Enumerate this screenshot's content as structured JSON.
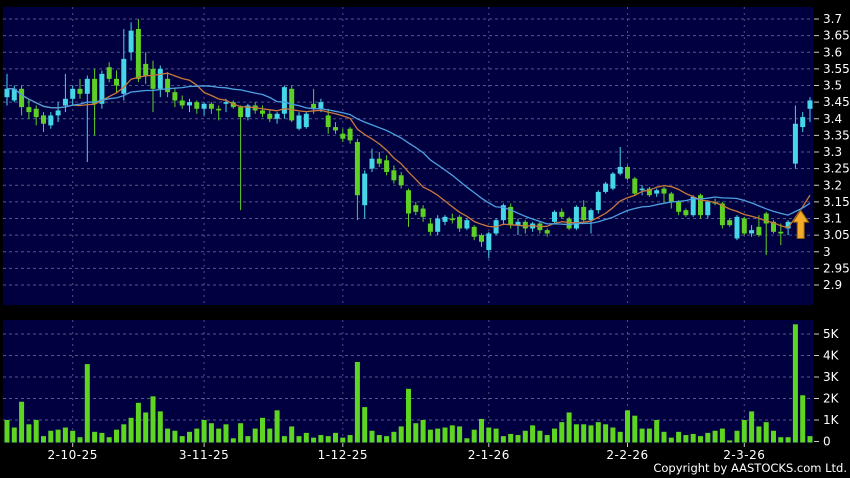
{
  "chart_data": {
    "type": "candlestick+volume",
    "title": "",
    "copyright": "Copyright by AASTOCKS.com Ltd.",
    "price_axis": {
      "max": 3.7,
      "min": 2.9,
      "tick_step": 0.05,
      "side": "right",
      "tick_labels": [
        "3.7",
        "3.65",
        "3.6",
        "3.55",
        "3.5",
        "3.45",
        "3.4",
        "3.35",
        "3.3",
        "3.25",
        "3.2",
        "3.15",
        "3.1",
        "3.05",
        "3",
        "2.95",
        "2.9"
      ]
    },
    "volume_axis": {
      "max_k": 5.65,
      "tick_step_k": 1,
      "side": "right",
      "tick_labels": [
        "5K",
        "4K",
        "3K",
        "2K",
        "1K",
        "0"
      ]
    },
    "month_marks": [
      {
        "index": 9,
        "label": "2-10-25"
      },
      {
        "index": 27,
        "label": "3-11-25"
      },
      {
        "index": 46,
        "label": "1-12-25"
      },
      {
        "index": 66,
        "label": "2-1-26"
      },
      {
        "index": 85,
        "label": "2-2-26"
      },
      {
        "index": 101,
        "label": "2-3-26"
      }
    ],
    "ma_lines": [
      {
        "name": "ma-fast",
        "period": 10,
        "color": "#c9793a"
      },
      {
        "name": "ma-slow",
        "period": 20,
        "color": "#4da0e0"
      }
    ],
    "signal_arrow": {
      "candle_index": 109,
      "direction": "up",
      "price_base": 3.04,
      "price_tip": 3.125,
      "color": "#f2aa28"
    },
    "colors": {
      "background": "#000000",
      "pane": "#000040",
      "up": "#45d6e8",
      "down": "#5ecf25",
      "volume_bar": "#5ed521",
      "grid": "#9aa0b8",
      "axis_text": "#ffffff",
      "tick": "#cccccc"
    },
    "candles_format": [
      "open",
      "high",
      "low",
      "close",
      "volume_k"
    ],
    "candles": [
      [
        3.465,
        3.535,
        3.44,
        3.49,
        1.0
      ],
      [
        3.455,
        3.5,
        3.45,
        3.49,
        0.65
      ],
      [
        3.49,
        3.5,
        3.41,
        3.435,
        1.85
      ],
      [
        3.435,
        3.46,
        3.4,
        3.42,
        0.8
      ],
      [
        3.43,
        3.44,
        3.38,
        3.405,
        1.0
      ],
      [
        3.41,
        3.42,
        3.36,
        3.385,
        0.25
      ],
      [
        3.38,
        3.42,
        3.37,
        3.41,
        0.5
      ],
      [
        3.41,
        3.45,
        3.39,
        3.425,
        0.55
      ],
      [
        3.44,
        3.535,
        3.42,
        3.46,
        0.65
      ],
      [
        3.46,
        3.5,
        3.44,
        3.49,
        0.5
      ],
      [
        3.49,
        3.52,
        3.46,
        3.475,
        0.2
      ],
      [
        3.475,
        3.53,
        3.27,
        3.52,
        3.6
      ],
      [
        3.52,
        3.55,
        3.35,
        3.445,
        0.45
      ],
      [
        3.445,
        3.545,
        3.43,
        3.535,
        0.4
      ],
      [
        3.555,
        3.57,
        3.51,
        3.52,
        0.2
      ],
      [
        3.52,
        3.545,
        3.48,
        3.5,
        0.55
      ],
      [
        3.475,
        3.67,
        3.455,
        3.58,
        0.8
      ],
      [
        3.6,
        3.69,
        3.575,
        3.665,
        1.1
      ],
      [
        3.67,
        3.7,
        3.51,
        3.52,
        1.8
      ],
      [
        3.565,
        3.6,
        3.505,
        3.53,
        1.35
      ],
      [
        3.55,
        3.575,
        3.42,
        3.49,
        2.1
      ],
      [
        3.49,
        3.56,
        3.465,
        3.55,
        1.4
      ],
      [
        3.52,
        3.54,
        3.465,
        3.48,
        0.6
      ],
      [
        3.48,
        3.49,
        3.435,
        3.455,
        0.5
      ],
      [
        3.455,
        3.47,
        3.43,
        3.44,
        0.25
      ],
      [
        3.44,
        3.46,
        3.42,
        3.45,
        0.45
      ],
      [
        3.45,
        3.455,
        3.415,
        3.43,
        0.6
      ],
      [
        3.43,
        3.45,
        3.41,
        3.445,
        1.0
      ],
      [
        3.445,
        3.45,
        3.415,
        3.43,
        0.85
      ],
      [
        3.43,
        3.44,
        3.395,
        3.425,
        0.6
      ],
      [
        3.445,
        3.46,
        3.42,
        3.45,
        0.8
      ],
      [
        3.45,
        3.455,
        3.43,
        3.435,
        0.15
      ],
      [
        3.435,
        3.44,
        3.125,
        3.405,
        0.85
      ],
      [
        3.405,
        3.445,
        3.395,
        3.44,
        0.25
      ],
      [
        3.44,
        3.45,
        3.415,
        3.425,
        0.6
      ],
      [
        3.425,
        3.44,
        3.405,
        3.415,
        1.1
      ],
      [
        3.415,
        3.425,
        3.39,
        3.4,
        0.6
      ],
      [
        3.4,
        3.42,
        3.385,
        3.415,
        1.45
      ],
      [
        3.415,
        3.5,
        3.4,
        3.495,
        0.25
      ],
      [
        3.49,
        3.5,
        3.39,
        3.395,
        0.7
      ],
      [
        3.37,
        3.42,
        3.365,
        3.41,
        0.25
      ],
      [
        3.375,
        3.42,
        3.37,
        3.415,
        0.4
      ],
      [
        3.445,
        3.49,
        3.415,
        3.43,
        0.18
      ],
      [
        3.43,
        3.46,
        3.42,
        3.45,
        0.3
      ],
      [
        3.41,
        3.43,
        3.355,
        3.375,
        0.25
      ],
      [
        3.375,
        3.39,
        3.355,
        3.365,
        0.4
      ],
      [
        3.355,
        3.37,
        3.33,
        3.34,
        0.18
      ],
      [
        3.37,
        3.375,
        3.325,
        3.335,
        0.3
      ],
      [
        3.33,
        3.34,
        3.095,
        3.17,
        3.7
      ],
      [
        3.14,
        3.245,
        3.1,
        3.235,
        1.6
      ],
      [
        3.25,
        3.31,
        3.24,
        3.28,
        0.5
      ],
      [
        3.28,
        3.3,
        3.255,
        3.265,
        0.3
      ],
      [
        3.275,
        3.29,
        3.23,
        3.24,
        0.25
      ],
      [
        3.245,
        3.26,
        3.205,
        3.215,
        0.45
      ],
      [
        3.23,
        3.24,
        3.19,
        3.2,
        0.7
      ],
      [
        3.185,
        3.19,
        3.075,
        3.115,
        2.45
      ],
      [
        3.14,
        3.15,
        3.11,
        3.12,
        0.85
      ],
      [
        3.13,
        3.14,
        3.09,
        3.105,
        1.0
      ],
      [
        3.085,
        3.1,
        3.05,
        3.06,
        0.55
      ],
      [
        3.06,
        3.11,
        3.05,
        3.1,
        0.6
      ],
      [
        3.09,
        3.11,
        3.08,
        3.105,
        0.65
      ],
      [
        3.1,
        3.115,
        3.085,
        3.095,
        0.75
      ],
      [
        3.105,
        3.11,
        3.06,
        3.07,
        0.7
      ],
      [
        3.07,
        3.1,
        3.065,
        3.095,
        0.15
      ],
      [
        3.075,
        3.08,
        3.035,
        3.045,
        0.55
      ],
      [
        3.05,
        3.055,
        3.015,
        3.03,
        1.05
      ],
      [
        3.005,
        3.06,
        2.98,
        3.055,
        0.65
      ],
      [
        3.055,
        3.1,
        3.05,
        3.095,
        0.6
      ],
      [
        3.095,
        3.145,
        3.08,
        3.14,
        0.25
      ],
      [
        3.135,
        3.145,
        3.07,
        3.08,
        0.35
      ],
      [
        3.08,
        3.1,
        3.05,
        3.09,
        0.3
      ],
      [
        3.09,
        3.095,
        3.055,
        3.07,
        0.5
      ],
      [
        3.07,
        3.09,
        3.06,
        3.085,
        0.75
      ],
      [
        3.085,
        3.09,
        3.055,
        3.065,
        0.5
      ],
      [
        3.065,
        3.07,
        3.045,
        3.055,
        0.3
      ],
      [
        3.09,
        3.125,
        3.085,
        3.12,
        0.6
      ],
      [
        3.12,
        3.13,
        3.1,
        3.105,
        0.9
      ],
      [
        3.1,
        3.105,
        3.065,
        3.07,
        1.35
      ],
      [
        3.07,
        3.14,
        3.065,
        3.135,
        0.8
      ],
      [
        3.135,
        3.155,
        3.09,
        3.095,
        0.8
      ],
      [
        3.095,
        3.13,
        3.055,
        3.125,
        0.75
      ],
      [
        3.125,
        3.185,
        3.115,
        3.18,
        0.9
      ],
      [
        3.18,
        3.21,
        3.175,
        3.205,
        0.8
      ],
      [
        3.19,
        3.24,
        3.185,
        3.235,
        0.65
      ],
      [
        3.235,
        3.315,
        3.23,
        3.255,
        0.45
      ],
      [
        3.255,
        3.26,
        3.215,
        3.22,
        1.45
      ],
      [
        3.22,
        3.225,
        3.17,
        3.175,
        1.2
      ],
      [
        3.185,
        3.2,
        3.17,
        3.19,
        0.6
      ],
      [
        3.19,
        3.195,
        3.165,
        3.17,
        0.6
      ],
      [
        3.175,
        3.19,
        3.165,
        3.185,
        1.0
      ],
      [
        3.19,
        3.195,
        3.15,
        3.175,
        0.45
      ],
      [
        3.175,
        3.18,
        3.13,
        3.15,
        0.18
      ],
      [
        3.15,
        3.155,
        3.11,
        3.12,
        0.45
      ],
      [
        3.125,
        3.13,
        3.105,
        3.11,
        0.3
      ],
      [
        3.11,
        3.17,
        3.105,
        3.165,
        0.35
      ],
      [
        3.17,
        3.175,
        3.1,
        3.11,
        0.25
      ],
      [
        3.11,
        3.155,
        3.1,
        3.15,
        0.4
      ],
      [
        3.15,
        3.16,
        3.14,
        3.145,
        0.5
      ],
      [
        3.145,
        3.15,
        3.07,
        3.08,
        0.6
      ],
      [
        3.095,
        3.1,
        3.075,
        3.08,
        0.05
      ],
      [
        3.04,
        3.11,
        3.035,
        3.105,
        0.5
      ],
      [
        3.1,
        3.105,
        3.05,
        3.055,
        1.0
      ],
      [
        3.055,
        3.08,
        3.045,
        3.065,
        1.4
      ],
      [
        3.075,
        3.11,
        3.045,
        3.05,
        0.7
      ],
      [
        3.115,
        3.12,
        2.99,
        3.085,
        0.9
      ],
      [
        3.09,
        3.095,
        3.055,
        3.06,
        0.5
      ],
      [
        3.06,
        3.085,
        3.02,
        3.055,
        0.2
      ],
      [
        3.07,
        3.095,
        3.05,
        3.09,
        0.2
      ],
      [
        3.265,
        3.44,
        3.25,
        3.385,
        5.45
      ],
      [
        3.375,
        3.42,
        3.36,
        3.405,
        2.15
      ],
      [
        3.43,
        3.465,
        3.39,
        3.455,
        0.25
      ]
    ]
  }
}
